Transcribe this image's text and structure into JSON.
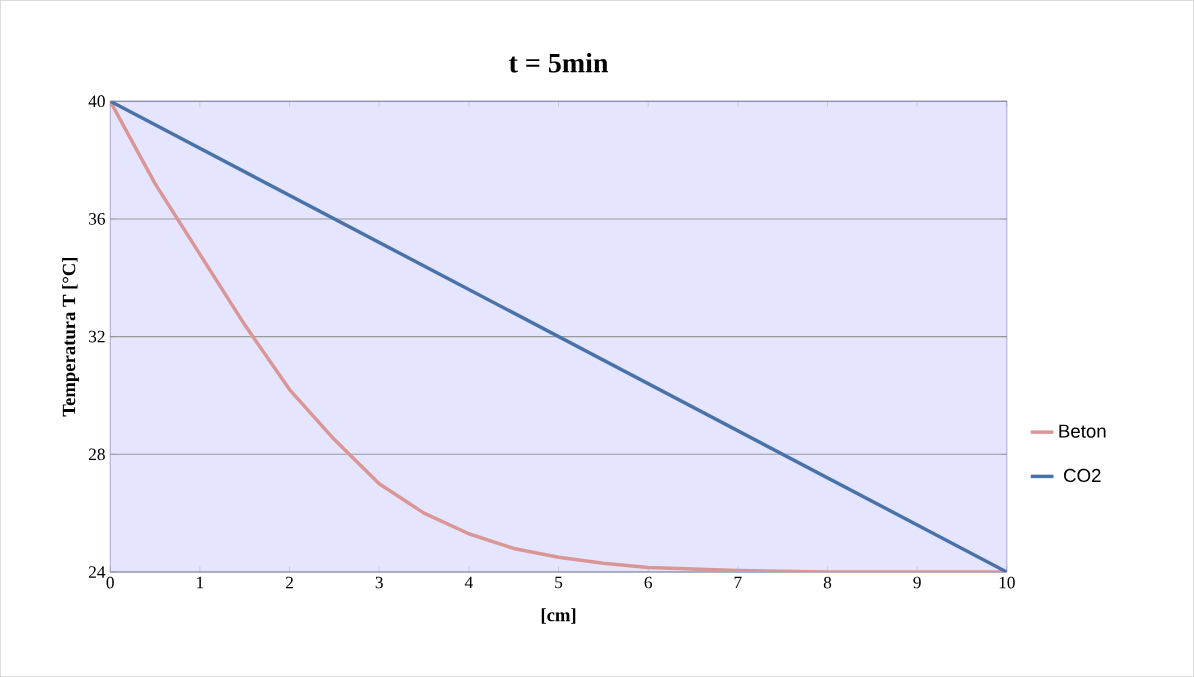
{
  "chart_data": {
    "type": "line",
    "title": "t = 5min",
    "xlabel": "[cm]",
    "ylabel": "Temperatura  T [°C]",
    "x": [
      0,
      0.5,
      1,
      1.5,
      2,
      2.5,
      3,
      3.5,
      4,
      4.5,
      5,
      5.5,
      6,
      7,
      8,
      9,
      10
    ],
    "series": [
      {
        "name": "Beton",
        "color": "#d99694",
        "values": [
          40,
          37.2,
          34.8,
          32.4,
          30.2,
          28.5,
          27.0,
          26.0,
          25.3,
          24.8,
          24.5,
          24.3,
          24.15,
          24.05,
          24.0,
          24.0,
          24.0
        ]
      },
      {
        "name": "CO2",
        "color": "#4a72aa",
        "x": [
          0,
          10
        ],
        "values": [
          40,
          24
        ]
      }
    ],
    "xlim": [
      0,
      10
    ],
    "ylim": [
      24,
      40
    ],
    "xticks": [
      0,
      1,
      2,
      3,
      4,
      5,
      6,
      7,
      8,
      9,
      10
    ],
    "yticks": [
      24,
      28,
      32,
      36,
      40
    ],
    "grid": true,
    "legend": "right",
    "marker": "none",
    "line_style": "solid"
  }
}
